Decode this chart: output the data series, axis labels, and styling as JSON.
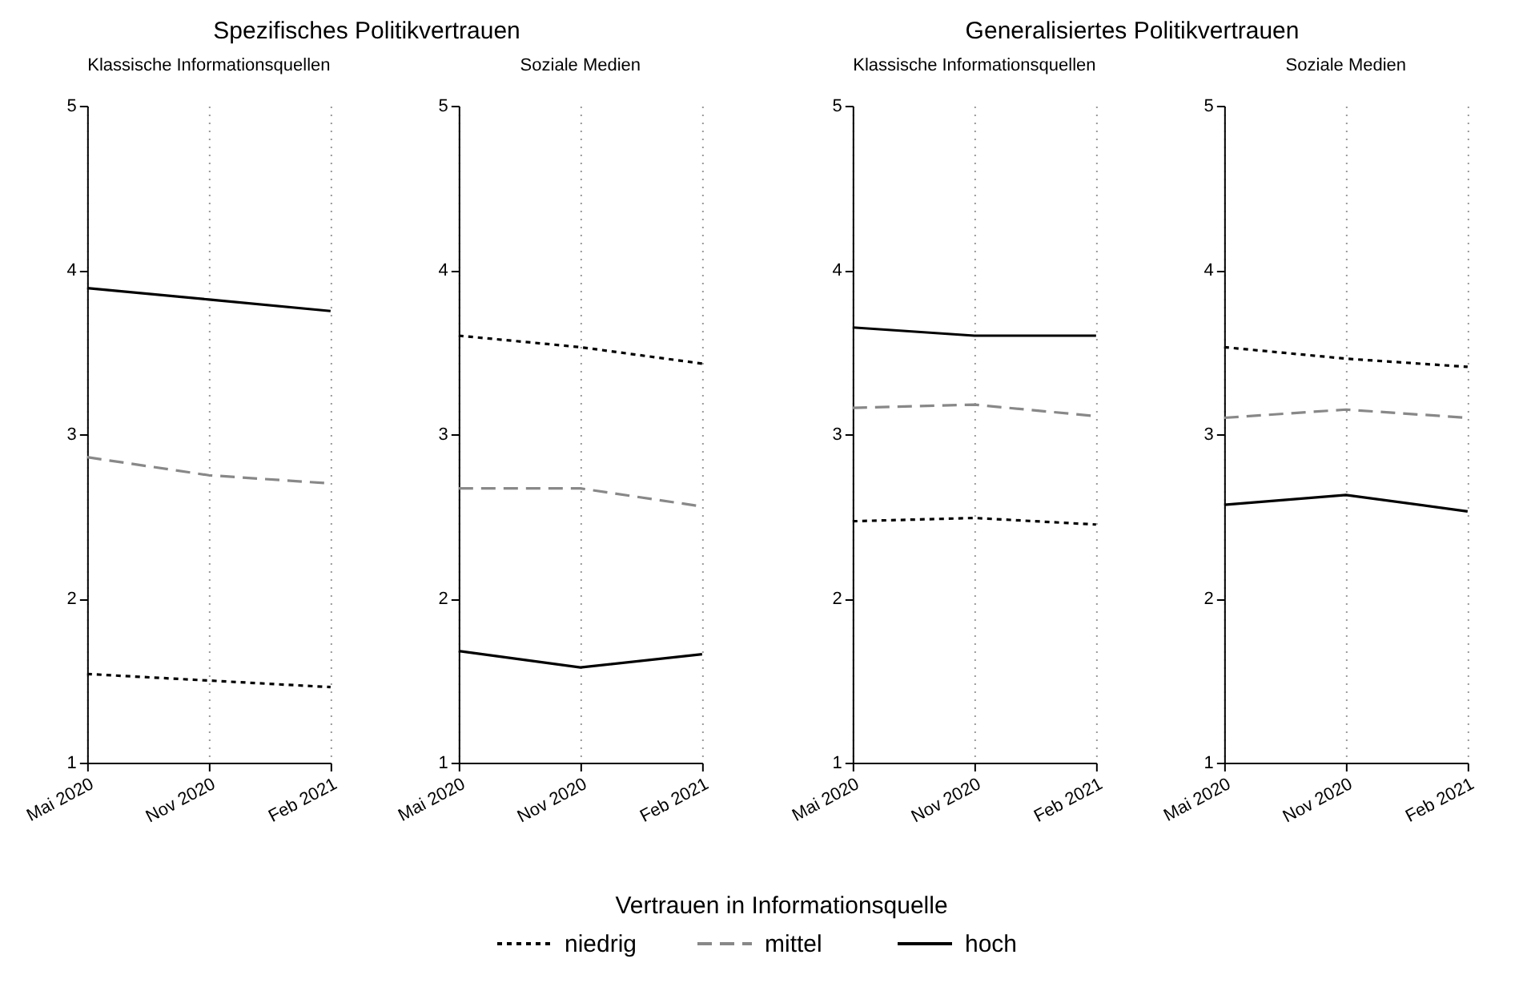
{
  "chart_data": [
    {
      "type": "line",
      "title": "Spezifisches Politikvertrauen",
      "subtitle": "Klassische Informationsquellen",
      "categories": [
        "Mai 2020",
        "Nov 2020",
        "Feb 2021"
      ],
      "ylim": [
        1,
        5
      ],
      "yticks": [
        1,
        2,
        3,
        4,
        5
      ],
      "grid": "x",
      "legend": "bottom",
      "legend_title": "Vertrauen in Informationsquelle",
      "series": [
        {
          "name": "niedrig",
          "color": "#000000",
          "line_style": "dotted",
          "values": [
            1.54,
            1.5,
            1.46
          ]
        },
        {
          "name": "mittel",
          "color": "#888888",
          "line_style": "dashed",
          "values": [
            2.86,
            2.75,
            2.7
          ]
        },
        {
          "name": "hoch",
          "color": "#000000",
          "line_style": "solid",
          "values": [
            3.89,
            3.82,
            3.75
          ]
        }
      ]
    },
    {
      "type": "line",
      "subtitle": "Soziale Medien",
      "categories": [
        "Mai 2020",
        "Nov 2020",
        "Feb 2021"
      ],
      "ylim": [
        1,
        5
      ],
      "yticks": [
        1,
        2,
        3,
        4,
        5
      ],
      "grid": "x",
      "series": [
        {
          "name": "niedrig",
          "color": "#000000",
          "line_style": "dotted",
          "values": [
            3.6,
            3.53,
            3.43
          ]
        },
        {
          "name": "mittel",
          "color": "#888888",
          "line_style": "dashed",
          "values": [
            2.67,
            2.67,
            2.56
          ]
        },
        {
          "name": "hoch",
          "color": "#000000",
          "line_style": "solid",
          "values": [
            1.68,
            1.58,
            1.66
          ]
        }
      ]
    },
    {
      "type": "line",
      "title": "Generalisiertes Politikvertrauen",
      "subtitle": "Klassische Informationsquellen",
      "categories": [
        "Mai 2020",
        "Nov 2020",
        "Feb 2021"
      ],
      "ylim": [
        1,
        5
      ],
      "yticks": [
        1,
        2,
        3,
        4,
        5
      ],
      "grid": "x",
      "series": [
        {
          "name": "niedrig",
          "color": "#000000",
          "line_style": "dotted",
          "values": [
            2.47,
            2.49,
            2.45
          ]
        },
        {
          "name": "mittel",
          "color": "#888888",
          "line_style": "dashed",
          "values": [
            3.16,
            3.18,
            3.11
          ]
        },
        {
          "name": "hoch",
          "color": "#000000",
          "line_style": "solid",
          "values": [
            3.65,
            3.6,
            3.6
          ]
        }
      ]
    },
    {
      "type": "line",
      "subtitle": "Soziale Medien",
      "categories": [
        "Mai 2020",
        "Nov 2020",
        "Feb 2021"
      ],
      "ylim": [
        1,
        5
      ],
      "yticks": [
        1,
        2,
        3,
        4,
        5
      ],
      "grid": "x",
      "series": [
        {
          "name": "niedrig",
          "color": "#000000",
          "line_style": "dotted",
          "values": [
            3.53,
            3.46,
            3.41
          ]
        },
        {
          "name": "mittel",
          "color": "#888888",
          "line_style": "dashed",
          "values": [
            3.1,
            3.15,
            3.1
          ]
        },
        {
          "name": "hoch",
          "color": "#000000",
          "line_style": "solid",
          "values": [
            2.57,
            2.63,
            2.53
          ]
        }
      ]
    }
  ]
}
